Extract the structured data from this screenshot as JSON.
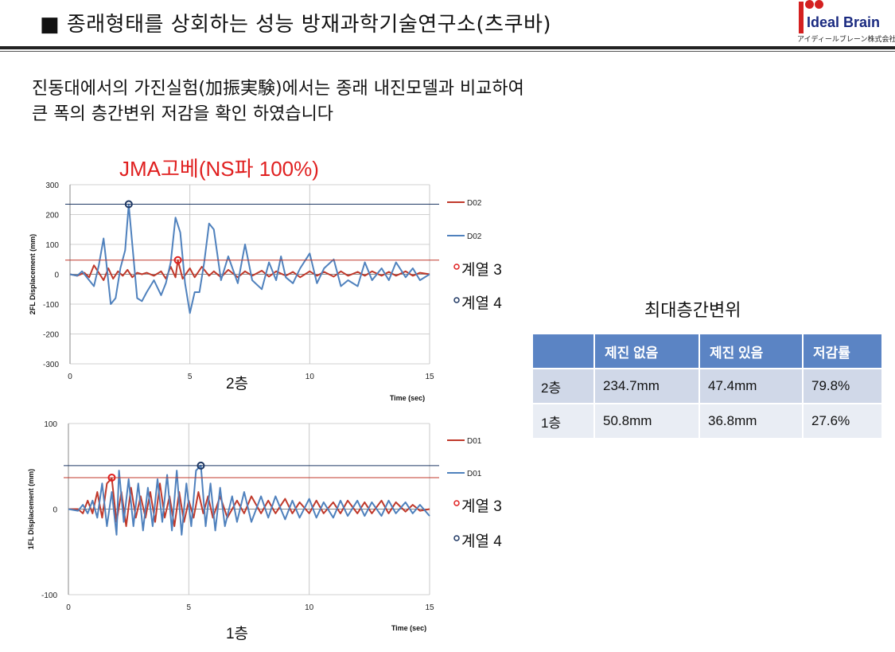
{
  "header": {
    "title": "■ 종래형태를 상회하는 성능  방재과학기술연구소(츠쿠바)"
  },
  "logo": {
    "name": "Ideal Brain",
    "sub": "アイディールブレーン株式会社"
  },
  "intro": {
    "line1": " 진동대에서의 가진실험(加振実験)에서는 종래 내진모델과 비교하여",
    "line2": "큰 폭의 층간변위 저감을 확인 하였습니다"
  },
  "chart_title": "JMA고베(NS파 100%)",
  "colors": {
    "red": "#c0392b",
    "blue": "#4f81bd",
    "dark_blue": "#1f3864"
  },
  "chart_data": [
    {
      "type": "line",
      "ylabel": "2FL Displacement (mm)",
      "xlabel": "Time (sec)",
      "caption": "2층",
      "xlim": [
        0,
        15
      ],
      "ylim": [
        -300,
        300
      ],
      "xticks": [
        "0",
        "5",
        "10",
        "15"
      ],
      "yticks": [
        "300",
        "200",
        "100",
        "0",
        "-100",
        "-200",
        "-300"
      ],
      "legend": [
        "D02",
        "D02",
        "계열 3",
        "계열 4"
      ],
      "hlines": [
        47.4,
        234.7
      ],
      "markers": [
        {
          "x": 4.5,
          "y": 47.4,
          "series": "계열 3"
        },
        {
          "x": 2.45,
          "y": 234.7,
          "series": "계열 4"
        }
      ],
      "series": [
        {
          "name": "D02",
          "color": "red",
          "x": [
            0,
            0.3,
            0.6,
            0.8,
            1.0,
            1.2,
            1.4,
            1.6,
            1.8,
            2.0,
            2.2,
            2.4,
            2.6,
            2.8,
            3.0,
            3.2,
            3.5,
            3.8,
            4.0,
            4.2,
            4.4,
            4.5,
            4.7,
            5.0,
            5.2,
            5.5,
            5.8,
            6.0,
            6.3,
            6.6,
            7.0,
            7.3,
            7.6,
            8.0,
            8.3,
            8.6,
            9.0,
            9.3,
            9.6,
            10.0,
            10.3,
            10.6,
            11.0,
            11.3,
            11.6,
            12.0,
            12.3,
            12.6,
            13.0,
            13.3,
            13.6,
            14.0,
            14.3,
            14.6,
            15.0
          ],
          "y": [
            0,
            -5,
            5,
            -10,
            30,
            5,
            -20,
            20,
            -15,
            10,
            -5,
            15,
            -10,
            5,
            0,
            5,
            -5,
            10,
            -15,
            25,
            -10,
            47,
            -15,
            20,
            -10,
            25,
            -5,
            10,
            -10,
            15,
            -10,
            10,
            -5,
            12,
            -8,
            10,
            -5,
            8,
            -10,
            10,
            -5,
            8,
            -8,
            10,
            -5,
            8,
            -5,
            10,
            -5,
            8,
            -5,
            10,
            -5,
            5,
            0
          ]
        },
        {
          "name": "D02",
          "color": "blue",
          "x": [
            0,
            0.3,
            0.5,
            0.8,
            1.0,
            1.2,
            1.4,
            1.5,
            1.7,
            1.9,
            2.1,
            2.3,
            2.45,
            2.6,
            2.8,
            3.0,
            3.2,
            3.5,
            3.8,
            4.0,
            4.2,
            4.4,
            4.6,
            4.8,
            5.0,
            5.2,
            5.4,
            5.6,
            5.8,
            6.0,
            6.3,
            6.6,
            7.0,
            7.3,
            7.6,
            8.0,
            8.3,
            8.6,
            8.8,
            9.0,
            9.3,
            9.6,
            10.0,
            10.3,
            10.6,
            11.0,
            11.3,
            11.6,
            12.0,
            12.3,
            12.6,
            13.0,
            13.3,
            13.6,
            14.0,
            14.3,
            14.6,
            15.0
          ],
          "y": [
            0,
            -5,
            10,
            -20,
            -40,
            30,
            120,
            50,
            -100,
            -80,
            20,
            80,
            234,
            100,
            -80,
            -90,
            -60,
            -20,
            -70,
            -30,
            40,
            190,
            140,
            -30,
            -130,
            -60,
            -60,
            40,
            170,
            150,
            -20,
            60,
            -30,
            100,
            -20,
            -50,
            40,
            -20,
            60,
            -10,
            -30,
            20,
            70,
            -30,
            20,
            50,
            -40,
            -20,
            -40,
            40,
            -20,
            20,
            -20,
            40,
            -10,
            20,
            -20,
            0
          ]
        }
      ]
    },
    {
      "type": "line",
      "ylabel": "1FL Displacement (mm)",
      "xlabel": "Time (sec)",
      "caption": "1층",
      "xlim": [
        0,
        15
      ],
      "ylim": [
        -100,
        100
      ],
      "xticks": [
        "0",
        "5",
        "10",
        "15"
      ],
      "yticks": [
        "100",
        "0",
        "-100"
      ],
      "legend": [
        "D01",
        "D01",
        "계열 3",
        "계열 4"
      ],
      "hlines": [
        36.8,
        50.8
      ],
      "markers": [
        {
          "x": 1.8,
          "y": 36.8,
          "series": "계열 3"
        },
        {
          "x": 5.5,
          "y": 50.8,
          "series": "계열 4"
        }
      ],
      "series": [
        {
          "name": "D01",
          "color": "red",
          "x": [
            0,
            0.4,
            0.6,
            0.8,
            1.0,
            1.2,
            1.4,
            1.6,
            1.8,
            2.0,
            2.2,
            2.4,
            2.6,
            2.8,
            3.0,
            3.2,
            3.4,
            3.6,
            3.8,
            4.0,
            4.2,
            4.4,
            4.6,
            4.8,
            5.0,
            5.2,
            5.4,
            5.6,
            5.8,
            6.0,
            6.3,
            6.6,
            7.0,
            7.3,
            7.6,
            8.0,
            8.3,
            8.6,
            9.0,
            9.3,
            9.6,
            10.0,
            10.3,
            10.6,
            11.0,
            11.3,
            11.6,
            12.0,
            12.3,
            12.6,
            13.0,
            13.3,
            13.6,
            14.0,
            14.3,
            14.6,
            15.0
          ],
          "y": [
            0,
            0,
            -5,
            10,
            -5,
            20,
            -10,
            30,
            36,
            -15,
            20,
            -20,
            25,
            -10,
            15,
            -10,
            20,
            -15,
            30,
            -10,
            15,
            -20,
            20,
            -15,
            10,
            -10,
            20,
            -5,
            15,
            -10,
            15,
            -10,
            10,
            -5,
            15,
            -5,
            10,
            -5,
            12,
            -5,
            8,
            -5,
            10,
            -5,
            8,
            -5,
            10,
            -5,
            8,
            -5,
            10,
            -5,
            8,
            -3,
            5,
            -2,
            0
          ]
        },
        {
          "name": "D01",
          "color": "blue",
          "x": [
            0,
            0.4,
            0.6,
            0.8,
            1.0,
            1.2,
            1.4,
            1.6,
            1.8,
            2.0,
            2.1,
            2.3,
            2.5,
            2.7,
            2.9,
            3.1,
            3.3,
            3.5,
            3.7,
            3.9,
            4.1,
            4.3,
            4.5,
            4.7,
            4.9,
            5.1,
            5.3,
            5.5,
            5.7,
            5.9,
            6.1,
            6.3,
            6.5,
            6.8,
            7.0,
            7.3,
            7.6,
            8.0,
            8.3,
            8.6,
            9.0,
            9.3,
            9.6,
            10.0,
            10.3,
            10.6,
            11.0,
            11.3,
            11.6,
            12.0,
            12.3,
            12.6,
            13.0,
            13.3,
            13.6,
            14.0,
            14.3,
            14.6,
            15.0
          ],
          "y": [
            0,
            -2,
            5,
            -5,
            10,
            -10,
            30,
            -20,
            20,
            -30,
            45,
            -15,
            35,
            -20,
            30,
            -25,
            25,
            -20,
            35,
            -15,
            40,
            -25,
            45,
            -30,
            30,
            -20,
            45,
            51,
            -20,
            30,
            -25,
            25,
            -20,
            15,
            -15,
            20,
            -15,
            15,
            -10,
            15,
            -12,
            10,
            -10,
            12,
            -10,
            8,
            -10,
            10,
            -8,
            10,
            -8,
            8,
            -8,
            10,
            -5,
            8,
            -5,
            5,
            -8
          ]
        }
      ]
    }
  ],
  "table": {
    "title": "최대층간변위",
    "headers": [
      "",
      "제진 없음",
      "제진 있음",
      "저감률"
    ],
    "rows": [
      [
        "2층",
        "234.7mm",
        "47.4mm",
        "79.8%"
      ],
      [
        "1층",
        "50.8mm",
        "36.8mm",
        "27.6%"
      ]
    ]
  }
}
